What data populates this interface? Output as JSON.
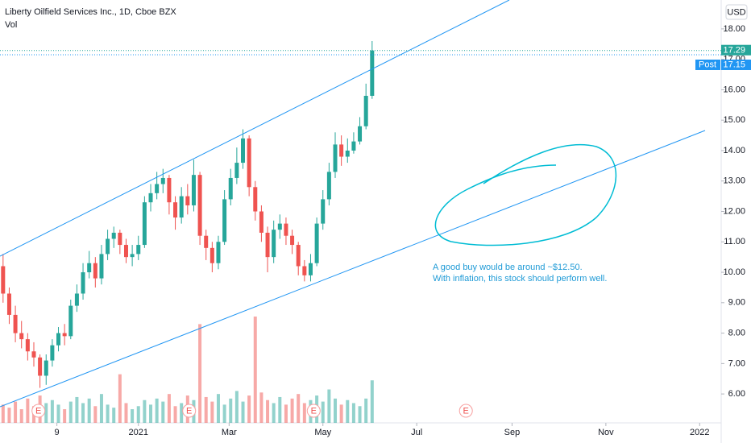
{
  "chart_data": {
    "type": "candlestick",
    "title": "Liberty Oilfield Services Inc., 1D, Cboe BZX",
    "subtitle": "Vol",
    "currency": "USD",
    "x": [
      -88,
      -84,
      -80,
      -76,
      -72,
      -68,
      -64,
      -60,
      -56,
      -52,
      -48,
      -44,
      -40,
      -36,
      -32,
      -28,
      -24,
      -20,
      -16,
      -12,
      -8,
      -4,
      0,
      4,
      8,
      12,
      16,
      20,
      24,
      28,
      32,
      36,
      40,
      44,
      48,
      52,
      56,
      60,
      64,
      68,
      72,
      76,
      80,
      84,
      88,
      92,
      96,
      100,
      104,
      108,
      112,
      116,
      120,
      124,
      128,
      132,
      136,
      140,
      144,
      148,
      152
    ],
    "open": [
      10.2,
      9.3,
      8.6,
      8.0,
      7.8,
      7.4,
      7.2,
      6.6,
      7.1,
      7.6,
      8.0,
      7.9,
      8.9,
      9.3,
      10.0,
      10.3,
      9.8,
      10.6,
      11.1,
      11.3,
      10.9,
      10.5,
      10.6,
      10.9,
      12.3,
      12.6,
      12.9,
      13.1,
      12.3,
      11.8,
      12.5,
      12.2,
      13.2,
      11.2,
      10.8,
      10.3,
      11.0,
      12.4,
      13.1,
      13.6,
      14.4,
      12.8,
      12.0,
      11.3,
      10.5,
      11.4,
      11.6,
      11.2,
      10.9,
      10.2,
      9.9,
      10.3,
      11.6,
      12.4,
      13.3,
      14.2,
      13.8,
      14.0,
      14.3,
      14.8,
      15.8
    ],
    "high": [
      10.6,
      9.5,
      8.9,
      8.4,
      8.0,
      7.7,
      7.3,
      7.3,
      7.8,
      8.2,
      8.3,
      9.1,
      9.6,
      10.3,
      10.7,
      10.5,
      10.9,
      11.4,
      11.5,
      11.4,
      11.1,
      10.9,
      11.2,
      12.5,
      12.9,
      13.3,
      13.4,
      13.2,
      12.5,
      12.8,
      12.9,
      13.7,
      13.3,
      11.4,
      11.0,
      11.2,
      12.7,
      13.4,
      14.1,
      14.7,
      14.5,
      13.0,
      12.2,
      11.5,
      11.7,
      11.9,
      11.8,
      11.4,
      11.0,
      10.4,
      10.6,
      11.8,
      12.7,
      13.6,
      14.6,
      14.5,
      14.4,
      14.6,
      15.1,
      16.2,
      17.6
    ],
    "low": [
      9.0,
      8.3,
      7.7,
      7.5,
      7.1,
      6.9,
      6.2,
      6.3,
      6.9,
      7.4,
      7.6,
      7.8,
      8.7,
      9.1,
      9.8,
      9.5,
      9.6,
      10.4,
      10.8,
      10.6,
      10.3,
      10.2,
      10.4,
      10.8,
      12.0,
      12.4,
      12.6,
      11.9,
      11.4,
      11.6,
      11.9,
      12.0,
      10.9,
      10.4,
      10.0,
      10.1,
      10.9,
      12.2,
      12.9,
      13.4,
      12.5,
      11.7,
      11.0,
      10.0,
      10.3,
      11.1,
      10.9,
      10.6,
      9.9,
      9.7,
      9.7,
      10.2,
      11.4,
      12.2,
      13.1,
      13.5,
      13.6,
      13.9,
      14.2,
      14.7,
      15.7
    ],
    "close": [
      9.3,
      8.6,
      8.0,
      7.8,
      7.4,
      7.2,
      6.6,
      7.1,
      7.6,
      8.0,
      7.9,
      8.9,
      9.3,
      10.0,
      10.3,
      9.8,
      10.6,
      11.1,
      11.3,
      10.9,
      10.5,
      10.6,
      10.9,
      12.3,
      12.6,
      12.9,
      13.1,
      12.3,
      11.8,
      12.5,
      12.2,
      13.2,
      11.2,
      10.8,
      10.3,
      11.0,
      12.4,
      13.1,
      13.6,
      14.4,
      12.8,
      12.0,
      11.3,
      10.5,
      11.4,
      11.6,
      11.2,
      10.9,
      10.2,
      9.9,
      10.3,
      11.6,
      12.4,
      13.3,
      14.2,
      13.8,
      14.0,
      14.3,
      14.8,
      15.8,
      17.29
    ],
    "volume": [
      1.2,
      1.0,
      1.4,
      0.9,
      1.6,
      1.1,
      1.8,
      1.3,
      1.5,
      1.2,
      0.9,
      1.4,
      1.7,
      1.3,
      1.6,
      1.1,
      1.9,
      1.2,
      1.0,
      3.2,
      1.3,
      0.9,
      1.1,
      1.5,
      1.2,
      1.6,
      1.4,
      1.9,
      1.1,
      1.3,
      1.8,
      1.5,
      6.5,
      1.7,
      1.4,
      1.9,
      1.2,
      1.6,
      2.1,
      1.4,
      1.8,
      7.0,
      2.0,
      1.5,
      1.3,
      1.7,
      1.2,
      1.6,
      1.9,
      1.3,
      1.5,
      1.8,
      1.4,
      2.2,
      1.6,
      1.2,
      1.5,
      1.3,
      1.1,
      1.6,
      2.8
    ],
    "up_color": "#26a69a",
    "down_color": "#ef5350",
    "xlim": [
      -90,
      379
    ],
    "xticks": [
      {
        "value": -53,
        "label": "9"
      },
      {
        "value": 0,
        "label": "2021"
      },
      {
        "value": 59,
        "label": "Mar"
      },
      {
        "value": 120,
        "label": "May"
      },
      {
        "value": 181,
        "label": "Jul"
      },
      {
        "value": 243,
        "label": "Sep"
      },
      {
        "value": 304,
        "label": "Nov"
      },
      {
        "value": 365,
        "label": "2022"
      }
    ],
    "ylim": [
      5.05,
      18.95
    ],
    "yticks": [
      {
        "value": 6,
        "label": "6.00"
      },
      {
        "value": 7,
        "label": "7.00"
      },
      {
        "value": 8,
        "label": "8.00"
      },
      {
        "value": 9,
        "label": "9.00"
      },
      {
        "value": 10,
        "label": "10.00"
      },
      {
        "value": 11,
        "label": "11.00"
      },
      {
        "value": 12,
        "label": "12.00"
      },
      {
        "value": 13,
        "label": "13.00"
      },
      {
        "value": 14,
        "label": "14.00"
      },
      {
        "value": 15,
        "label": "15.00"
      },
      {
        "value": 16,
        "label": "16.00"
      },
      {
        "value": 17,
        "label": "17.00"
      },
      {
        "value": 18,
        "label": "18.00"
      }
    ],
    "last_price": 17.29,
    "post_label": "Post",
    "post_price": 17.15,
    "earnings": [
      {
        "x": -65,
        "label": "E"
      },
      {
        "x": 33,
        "label": "E"
      },
      {
        "x": 114,
        "label": "E"
      },
      {
        "x": 213,
        "label": "E"
      }
    ],
    "annotation": [
      "A good buy would be around ~$12.50.",
      "With inflation, this stock should perform well."
    ]
  }
}
